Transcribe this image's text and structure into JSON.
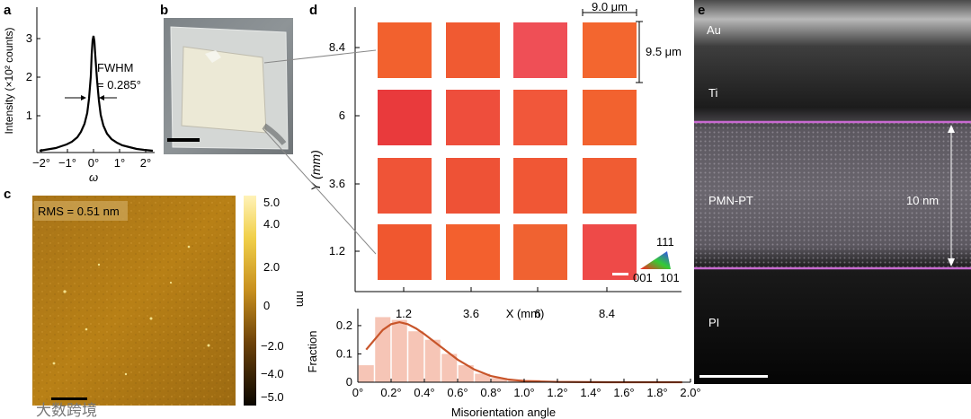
{
  "panels": {
    "a": {
      "letter": "a",
      "ylabel": "Intensity (×10² counts)",
      "xlabel": "ω",
      "yticks": [
        "1",
        "2",
        "3"
      ],
      "xticks": [
        "−2°",
        "−1°",
        "0°",
        "1°",
        "2°"
      ],
      "annotation_line1": "FWHM",
      "annotation_line2": "= 0.285°"
    },
    "b": {
      "letter": "b"
    },
    "c": {
      "letter": "c",
      "rms_label": "RMS = 0.51 nm",
      "colorbar_ticks": [
        "5.0",
        "4.0",
        "2.0",
        "0",
        "−2.0",
        "−4.0",
        "−5.0"
      ],
      "colorbar_unit": "nm"
    },
    "d": {
      "letter": "d",
      "ylabel": "Y (mm)",
      "xlabel": "X (mm)",
      "y_ticks": [
        "8.4",
        "6",
        "3.6",
        "1.2"
      ],
      "x_ticks": [
        "1.2",
        "3.6",
        "6",
        "8.4"
      ],
      "width_label": "9.0 μm",
      "height_label": "9.5 μm",
      "ipf_labels": [
        "111",
        "001",
        "101"
      ],
      "tile_colors": [
        [
          "#f2612e",
          "#f05a32",
          "#ef4f56",
          "#f3662f"
        ],
        [
          "#e93a3c",
          "#ee4e3c",
          "#f1573a",
          "#f2622f"
        ],
        [
          "#ef5437",
          "#ee5236",
          "#f05735",
          "#f05c33"
        ],
        [
          "#f0572f",
          "#f3602e",
          "#f06231",
          "#ee4a48"
        ]
      ]
    },
    "e": {
      "letter": "e",
      "layer_au": "Au",
      "layer_ti": "Ti",
      "layer_pmnpt": "PMN-PT",
      "layer_pi": "PI",
      "thickness_label": "10 nm"
    }
  },
  "chart_data": {
    "type": "bar",
    "x": [
      0.05,
      0.15,
      0.25,
      0.35,
      0.45,
      0.55,
      0.65,
      0.75,
      0.85,
      0.95,
      1.05,
      1.15,
      1.25,
      1.35,
      1.45,
      1.55,
      1.65,
      1.75,
      1.85,
      1.95
    ],
    "values": [
      0.06,
      0.23,
      0.22,
      0.18,
      0.15,
      0.1,
      0.06,
      0.03,
      0.015,
      0.01,
      0.008,
      0.005,
      0.003,
      0.002,
      0.002,
      0.001,
      0.001,
      0.001,
      0.001,
      0.001
    ],
    "fit_curve": [
      [
        0.05,
        0.115
      ],
      [
        0.1,
        0.15
      ],
      [
        0.15,
        0.185
      ],
      [
        0.2,
        0.205
      ],
      [
        0.25,
        0.212
      ],
      [
        0.3,
        0.205
      ],
      [
        0.35,
        0.19
      ],
      [
        0.4,
        0.17
      ],
      [
        0.5,
        0.125
      ],
      [
        0.6,
        0.08
      ],
      [
        0.7,
        0.045
      ],
      [
        0.8,
        0.022
      ],
      [
        0.9,
        0.01
      ],
      [
        1.0,
        0.004
      ],
      [
        1.2,
        0.0008
      ],
      [
        1.5,
        0.0
      ],
      [
        1.95,
        0.0
      ]
    ],
    "xlabel": "Misorientation angle",
    "ylabel": "Fraction",
    "xlim": [
      0,
      2.0
    ],
    "ylim": [
      0,
      0.26
    ],
    "x_ticks": [
      "0°",
      "0.2°",
      "0.4°",
      "0.6°",
      "0.8°",
      "1.0°",
      "1.2°",
      "1.4°",
      "1.6°",
      "1.8°",
      "2.0°"
    ],
    "y_ticks": [
      "0",
      "0.1",
      "0.2"
    ],
    "bar_color": "#f6c5b6",
    "curve_color": "#c8552a"
  },
  "watermark": "大数跨境"
}
